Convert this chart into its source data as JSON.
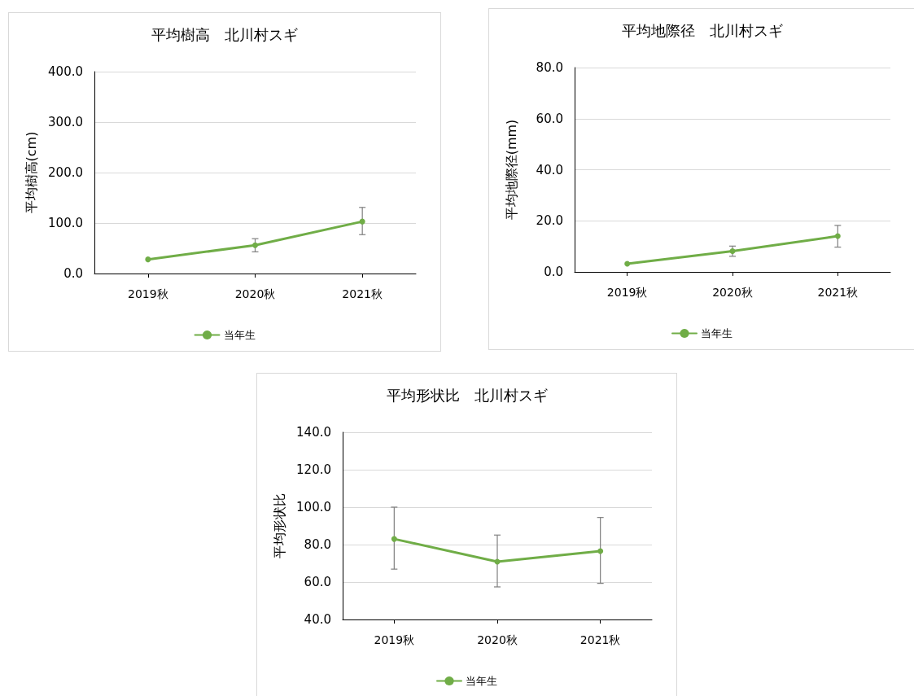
{
  "chart_data": [
    {
      "type": "line",
      "title": "平均樹高　北川村スギ",
      "ylabel": "平均樹高(cm)",
      "categories": [
        "2019秋",
        "2020秋",
        "2021秋"
      ],
      "series": [
        {
          "name": "当年生",
          "color": "#70ad47",
          "values": [
            28,
            56,
            103
          ],
          "errors": [
            null,
            [
              43,
              69
            ],
            [
              77,
              131
            ]
          ]
        }
      ],
      "ylim": [
        0,
        400
      ],
      "yticks": [
        {
          "value": 0,
          "label": "0.0"
        },
        {
          "value": 100,
          "label": "100.0"
        },
        {
          "value": 200,
          "label": "200.0"
        },
        {
          "value": 300,
          "label": "300.0"
        },
        {
          "value": 400,
          "label": "400.0"
        }
      ],
      "grid": "y",
      "legend": "bottom",
      "marker": "circle"
    },
    {
      "type": "line",
      "title": "平均地際径　北川村スギ",
      "ylabel": "平均地際径(mm)",
      "categories": [
        "2019秋",
        "2020秋",
        "2021秋"
      ],
      "series": [
        {
          "name": "当年生",
          "color": "#70ad47",
          "values": [
            3.2,
            8.1,
            14.0
          ],
          "errors": [
            null,
            [
              6.1,
              10.1
            ],
            [
              9.7,
              18.2
            ]
          ]
        }
      ],
      "ylim": [
        0,
        80
      ],
      "yticks": [
        {
          "value": 0,
          "label": "0.0"
        },
        {
          "value": 20,
          "label": "20.0"
        },
        {
          "value": 40,
          "label": "40.0"
        },
        {
          "value": 60,
          "label": "60.0"
        },
        {
          "value": 80,
          "label": "80.0"
        }
      ],
      "grid": "y",
      "legend": "bottom",
      "marker": "circle"
    },
    {
      "type": "line",
      "title": "平均形状比　北川村スギ",
      "ylabel": "平均形状比",
      "categories": [
        "2019秋",
        "2020秋",
        "2021秋"
      ],
      "series": [
        {
          "name": "当年生",
          "color": "#70ad47",
          "values": [
            83.0,
            70.9,
            76.5
          ],
          "errors": [
            [
              66.9,
              100.0
            ],
            [
              57.4,
              85.1
            ],
            [
              59.3,
              94.5
            ]
          ]
        }
      ],
      "ylim": [
        40,
        140
      ],
      "yticks": [
        {
          "value": 40,
          "label": "40.0"
        },
        {
          "value": 60,
          "label": "60.0"
        },
        {
          "value": 80,
          "label": "80.0"
        },
        {
          "value": 100,
          "label": "100.0"
        },
        {
          "value": 120,
          "label": "120.0"
        },
        {
          "value": 140,
          "label": "140.0"
        }
      ],
      "grid": "y",
      "legend": "bottom",
      "marker": "circle"
    }
  ]
}
